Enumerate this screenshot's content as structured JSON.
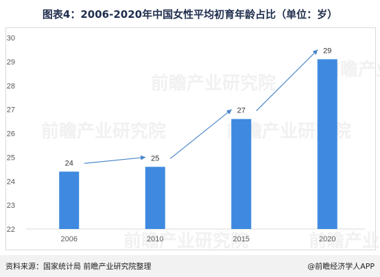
{
  "title": "图表4：2006-2020年中国女性平均初育年龄占比（单位：岁）",
  "footer": {
    "source": "资料来源：国家统计局 前瞻产业研究院整理",
    "brand": "@前瞻经济学人APP"
  },
  "watermark": "前瞻产业研究院",
  "colors": {
    "bar": "#3f8ae0",
    "arrow": "#4a86c8",
    "grid": "#d9d9d9"
  },
  "chart_data": {
    "type": "bar",
    "title": "图表4：2006-2020年中国女性平均初育年龄占比（单位：岁）",
    "categories": [
      "2006",
      "2010",
      "2015",
      "2020"
    ],
    "values": [
      24.4,
      24.6,
      26.6,
      29.1
    ],
    "data_labels": [
      "24",
      "25",
      "27",
      "29"
    ],
    "ylim": [
      22,
      30
    ],
    "yticks": [
      "22",
      "23",
      "24",
      "25",
      "26",
      "27",
      "28",
      "29",
      "30"
    ],
    "xlabel": "",
    "ylabel": "",
    "grid": false,
    "legend": "none",
    "annotations": "trend arrows between data labels"
  }
}
